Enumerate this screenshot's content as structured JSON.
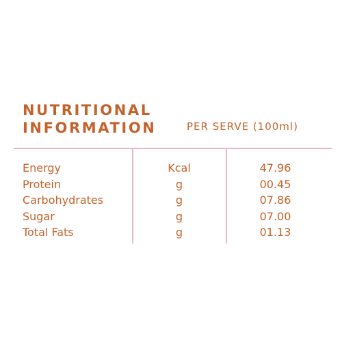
{
  "label": {
    "title_line1": "NUTRITIONAL",
    "title_line2": "INFORMATION",
    "per_serve": "PER SERVE (100ml)",
    "rows": [
      {
        "name": "Energy",
        "unit": "Kcal",
        "value": "47.96"
      },
      {
        "name": "Protein",
        "unit": "g",
        "value": "00.45"
      },
      {
        "name": "Carbohydrates",
        "unit": "g",
        "value": "07.86"
      },
      {
        "name": "Sugar",
        "unit": "g",
        "value": "07.00"
      },
      {
        "name": "Total Fats",
        "unit": "g",
        "value": "01.13"
      }
    ]
  },
  "colors": {
    "text": "#c4622c",
    "rule": "#e8b6cb",
    "background": "#ffffff"
  }
}
